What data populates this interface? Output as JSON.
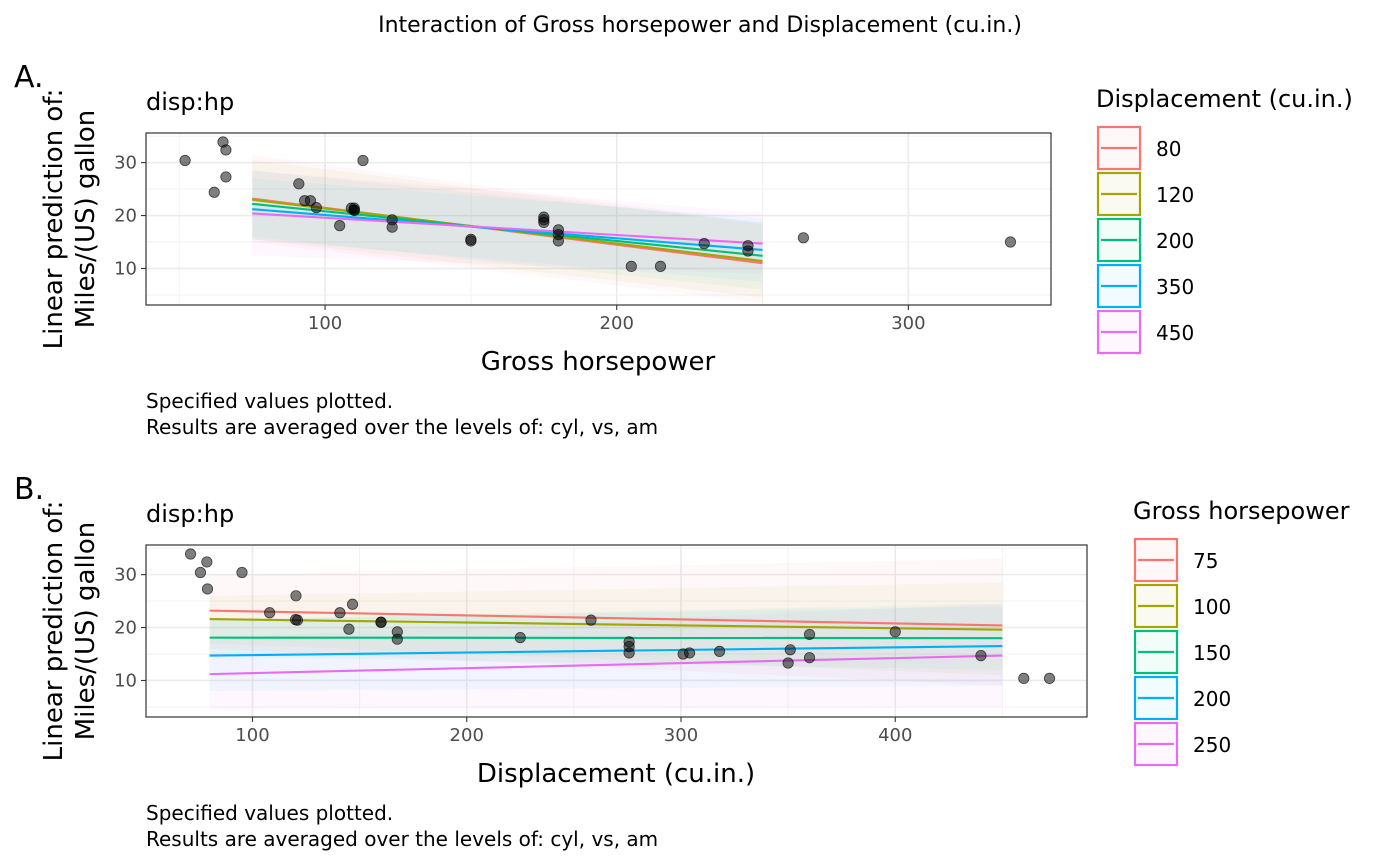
{
  "title": "Interaction of Gross horsepower and Displacement (cu.in.)",
  "colors": {
    "palette": [
      "#F8766D",
      "#A3A500",
      "#00BF7D",
      "#00B0F6",
      "#E76BF3"
    ],
    "points": "#000000",
    "panel_border": "#333333",
    "grid": "#EBEBEB"
  },
  "chart_data": [
    {
      "type": "line",
      "tag": "A.",
      "subtitle": "disp:hp",
      "xlabel": "Gross horsepower",
      "ylabel": [
        "Linear prediction of:",
        "Miles/(US) gallon"
      ],
      "xlim": [
        38.6,
        348.9
      ],
      "ylim": [
        3.1,
        35.6
      ],
      "xticks": [
        100,
        200,
        300
      ],
      "yticks": [
        10,
        20,
        30
      ],
      "legend_title": "Displacement (cu.in.)",
      "legend_position": "right",
      "caption": [
        "Specified values plotted.",
        "Results are averaged over the levels of: cyl, vs, am"
      ],
      "x_range": [
        75,
        250
      ],
      "series": [
        {
          "name": "80",
          "x": [
            75,
            250
          ],
          "y": [
            23.2,
            11.0
          ],
          "ci": [
            [
              15.0,
              31.5
            ],
            [
              3.5,
              18.5
            ]
          ]
        },
        {
          "name": "120",
          "x": [
            75,
            250
          ],
          "y": [
            23.0,
            11.4
          ],
          "ci": [
            [
              15.5,
              30.5
            ],
            [
              4.5,
              18.3
            ]
          ]
        },
        {
          "name": "200",
          "x": [
            75,
            250
          ],
          "y": [
            22.2,
            12.4
          ],
          "ci": [
            [
              16.0,
              28.5
            ],
            [
              6.0,
              18.8
            ]
          ]
        },
        {
          "name": "350",
          "x": [
            75,
            250
          ],
          "y": [
            21.2,
            13.5
          ],
          "ci": [
            [
              15.5,
              27.0
            ],
            [
              7.5,
              19.5
            ]
          ]
        },
        {
          "name": "450",
          "x": [
            75,
            250
          ],
          "y": [
            20.4,
            14.7
          ],
          "ci": [
            [
              12.5,
              28.5
            ],
            [
              9.0,
              20.5
            ]
          ]
        }
      ],
      "points": [
        {
          "x": 110,
          "y": 21.0
        },
        {
          "x": 110,
          "y": 21.0
        },
        {
          "x": 93,
          "y": 22.8
        },
        {
          "x": 110,
          "y": 21.4
        },
        {
          "x": 175,
          "y": 18.7
        },
        {
          "x": 105,
          "y": 18.1
        },
        {
          "x": 245,
          "y": 14.3
        },
        {
          "x": 62,
          "y": 24.4
        },
        {
          "x": 95,
          "y": 22.8
        },
        {
          "x": 123,
          "y": 19.2
        },
        {
          "x": 123,
          "y": 17.8
        },
        {
          "x": 180,
          "y": 16.4
        },
        {
          "x": 180,
          "y": 17.3
        },
        {
          "x": 180,
          "y": 15.2
        },
        {
          "x": 205,
          "y": 10.4
        },
        {
          "x": 215,
          "y": 10.4
        },
        {
          "x": 230,
          "y": 14.7
        },
        {
          "x": 66,
          "y": 32.4
        },
        {
          "x": 52,
          "y": 30.4
        },
        {
          "x": 65,
          "y": 33.9
        },
        {
          "x": 97,
          "y": 21.5
        },
        {
          "x": 150,
          "y": 15.5
        },
        {
          "x": 150,
          "y": 15.2
        },
        {
          "x": 245,
          "y": 13.3
        },
        {
          "x": 175,
          "y": 19.2
        },
        {
          "x": 66,
          "y": 27.3
        },
        {
          "x": 91,
          "y": 26.0
        },
        {
          "x": 113,
          "y": 30.4
        },
        {
          "x": 264,
          "y": 15.8
        },
        {
          "x": 175,
          "y": 19.7
        },
        {
          "x": 335,
          "y": 15.0
        },
        {
          "x": 109,
          "y": 21.4
        }
      ]
    },
    {
      "type": "line",
      "tag": "B.",
      "subtitle": "disp:hp",
      "xlabel": "Displacement (cu.in.)",
      "ylabel": [
        "Linear prediction of:",
        "Miles/(US) gallon"
      ],
      "xlim": [
        50.3,
        489.5
      ],
      "ylim": [
        3.1,
        35.6
      ],
      "xticks": [
        100,
        200,
        300,
        400
      ],
      "yticks": [
        10,
        20,
        30
      ],
      "legend_title": "Gross horsepower",
      "legend_position": "right",
      "caption": [
        "Specified values plotted.",
        "Results are averaged over the levels of: cyl, vs, am"
      ],
      "x_range": [
        80,
        450
      ],
      "series": [
        {
          "name": "75",
          "x": [
            80,
            450
          ],
          "y": [
            23.2,
            20.4
          ],
          "ci": [
            [
              16.0,
              30.0
            ],
            [
              9.0,
              33.0
            ]
          ]
        },
        {
          "name": "100",
          "x": [
            80,
            450
          ],
          "y": [
            21.6,
            19.6
          ],
          "ci": [
            [
              17.0,
              26.0
            ],
            [
              11.0,
              28.5
            ]
          ]
        },
        {
          "name": "150",
          "x": [
            80,
            450
          ],
          "y": [
            18.1,
            18.0
          ],
          "ci": [
            [
              14.5,
              21.5
            ],
            [
              12.0,
              24.5
            ]
          ]
        },
        {
          "name": "200",
          "x": [
            80,
            450
          ],
          "y": [
            14.7,
            16.5
          ],
          "ci": [
            [
              8.0,
              21.5
            ],
            [
              9.0,
              24.0
            ]
          ]
        },
        {
          "name": "250",
          "x": [
            80,
            450
          ],
          "y": [
            11.2,
            14.7
          ],
          "ci": [
            [
              4.5,
              18.0
            ],
            [
              5.0,
              24.5
            ]
          ]
        }
      ],
      "points": [
        {
          "x": 160,
          "y": 21.0
        },
        {
          "x": 160,
          "y": 21.0
        },
        {
          "x": 108,
          "y": 22.8
        },
        {
          "x": 258,
          "y": 21.4
        },
        {
          "x": 360,
          "y": 18.7
        },
        {
          "x": 225,
          "y": 18.1
        },
        {
          "x": 360,
          "y": 14.3
        },
        {
          "x": 146.7,
          "y": 24.4
        },
        {
          "x": 140.8,
          "y": 22.8
        },
        {
          "x": 167.6,
          "y": 19.2
        },
        {
          "x": 167.6,
          "y": 17.8
        },
        {
          "x": 275.8,
          "y": 16.4
        },
        {
          "x": 275.8,
          "y": 17.3
        },
        {
          "x": 275.8,
          "y": 15.2
        },
        {
          "x": 472,
          "y": 10.4
        },
        {
          "x": 460,
          "y": 10.4
        },
        {
          "x": 440,
          "y": 14.7
        },
        {
          "x": 78.7,
          "y": 32.4
        },
        {
          "x": 75.7,
          "y": 30.4
        },
        {
          "x": 71.1,
          "y": 33.9
        },
        {
          "x": 120.1,
          "y": 21.5
        },
        {
          "x": 318,
          "y": 15.5
        },
        {
          "x": 304,
          "y": 15.2
        },
        {
          "x": 350,
          "y": 13.3
        },
        {
          "x": 400,
          "y": 19.2
        },
        {
          "x": 79,
          "y": 27.3
        },
        {
          "x": 120.3,
          "y": 26.0
        },
        {
          "x": 95.1,
          "y": 30.4
        },
        {
          "x": 351,
          "y": 15.8
        },
        {
          "x": 145,
          "y": 19.7
        },
        {
          "x": 301,
          "y": 15.0
        },
        {
          "x": 121,
          "y": 21.4
        }
      ]
    }
  ]
}
